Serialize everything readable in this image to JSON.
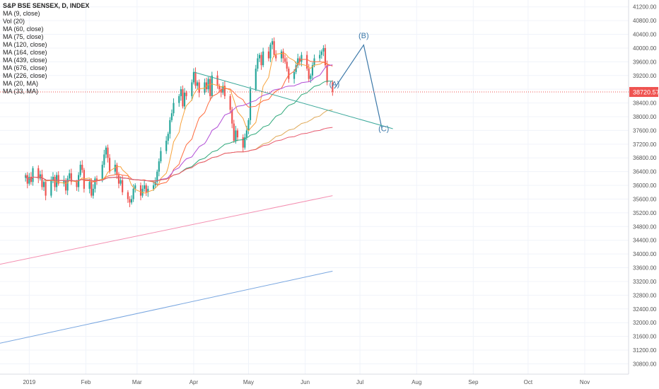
{
  "legend": {
    "title": "S&P BSE SENSEX, D, INDEX",
    "studies": [
      "MA (9, close)",
      "Vol (20)",
      "MA (60, close)",
      "MA (75, close)",
      "MA (120, close)",
      "MA (164, close)",
      "MA (439, close)",
      "MA (676, close)",
      "MA (226, close)",
      "MA (20, MA)",
      "MA (33, MA)"
    ]
  },
  "colors": {
    "up": "#26a69a",
    "down": "#ef5350",
    "price_line": "#ef5350",
    "trendline": "#3c78a8",
    "green_line": "#2ea87a"
  },
  "chart_data": {
    "type": "candlestick",
    "y_ticks": [
      41200,
      40800,
      40400,
      40000,
      39600,
      39200,
      38800,
      38400,
      38000,
      37600,
      37200,
      36800,
      36400,
      36000,
      35600,
      35200,
      34800,
      34400,
      34000,
      33600,
      33200,
      32800,
      32400,
      32000,
      31600,
      31200,
      30800
    ],
    "y_tick_labels": [
      "41200.00",
      "40800.00",
      "40400.00",
      "40000.00",
      "39600.00",
      "39200.00",
      "38800.00",
      "38400.00",
      "38000.00",
      "37600.00",
      "37200.00",
      "36800.00",
      "36400.00",
      "36000.00",
      "35600.00",
      "35200.00",
      "34800.00",
      "34400.00",
      "34000.00",
      "33600.00",
      "33200.00",
      "32800.00",
      "32400.00",
      "32000.00",
      "31600.00",
      "31200.00",
      "30800.00"
    ],
    "ylim": [
      30500,
      41400
    ],
    "x_labels": [
      {
        "label": "2019",
        "day": 2
      },
      {
        "label": "Feb",
        "day": 33
      },
      {
        "label": "Mar",
        "day": 61
      },
      {
        "label": "Apr",
        "day": 92
      },
      {
        "label": "May",
        "day": 122
      },
      {
        "label": "Jun",
        "day": 153
      },
      {
        "label": "Jul",
        "day": 183
      },
      {
        "label": "Aug",
        "day": 214
      },
      {
        "label": "Sep",
        "day": 245
      },
      {
        "label": "Oct",
        "day": 275
      },
      {
        "label": "Nov",
        "day": 306
      }
    ],
    "x_extent_days": [
      -14,
      330
    ],
    "last_price": {
      "value": 38720.57,
      "label": "38720.57"
    },
    "closes": [
      36300,
      36050,
      36250,
      36100,
      36500,
      36200,
      36320,
      35950,
      36100,
      35700,
      36150,
      36250,
      35950,
      36300,
      36050,
      36150,
      35850,
      36200,
      36350,
      36100,
      35950,
      36300,
      36600,
      36450,
      35900,
      36100,
      35700,
      35900,
      36200,
      36150,
      36600,
      36900,
      37100,
      36800,
      36400,
      36600,
      36300,
      36050,
      36150,
      35800,
      35600,
      35500,
      35600,
      35900,
      36000,
      35700,
      35900,
      36000,
      35800,
      35900,
      36000,
      36100,
      36400,
      36700,
      37000,
      37300,
      37500,
      37900,
      38100,
      38400,
      38600,
      38800,
      38300,
      38700,
      38600,
      39000,
      39300,
      38900,
      39000,
      38700,
      39000,
      38800,
      39100,
      38600,
      39200,
      38900,
      38800,
      38700,
      38900,
      38600,
      38200,
      37800,
      37300,
      37600,
      37400,
      37100,
      37400,
      37600,
      37900,
      38800,
      39400,
      39700,
      39800,
      39500,
      39900,
      39700,
      40100,
      40200,
      39800,
      39700,
      39900,
      39700,
      39600,
      39400,
      39100,
      39300,
      39500,
      39700,
      39600,
      39800,
      39400,
      39100,
      39200,
      39500,
      39700,
      39800,
      39900,
      40000,
      39500,
      39000,
      38720.57
    ],
    "annotations": [
      {
        "text": "(A)",
        "day": 169,
        "value": 38880
      },
      {
        "text": "(B)",
        "day": 185,
        "value": 40290
      },
      {
        "text": "(C)",
        "day": 196,
        "value": 37580
      }
    ],
    "grid": true,
    "legend_position": "top-left"
  }
}
